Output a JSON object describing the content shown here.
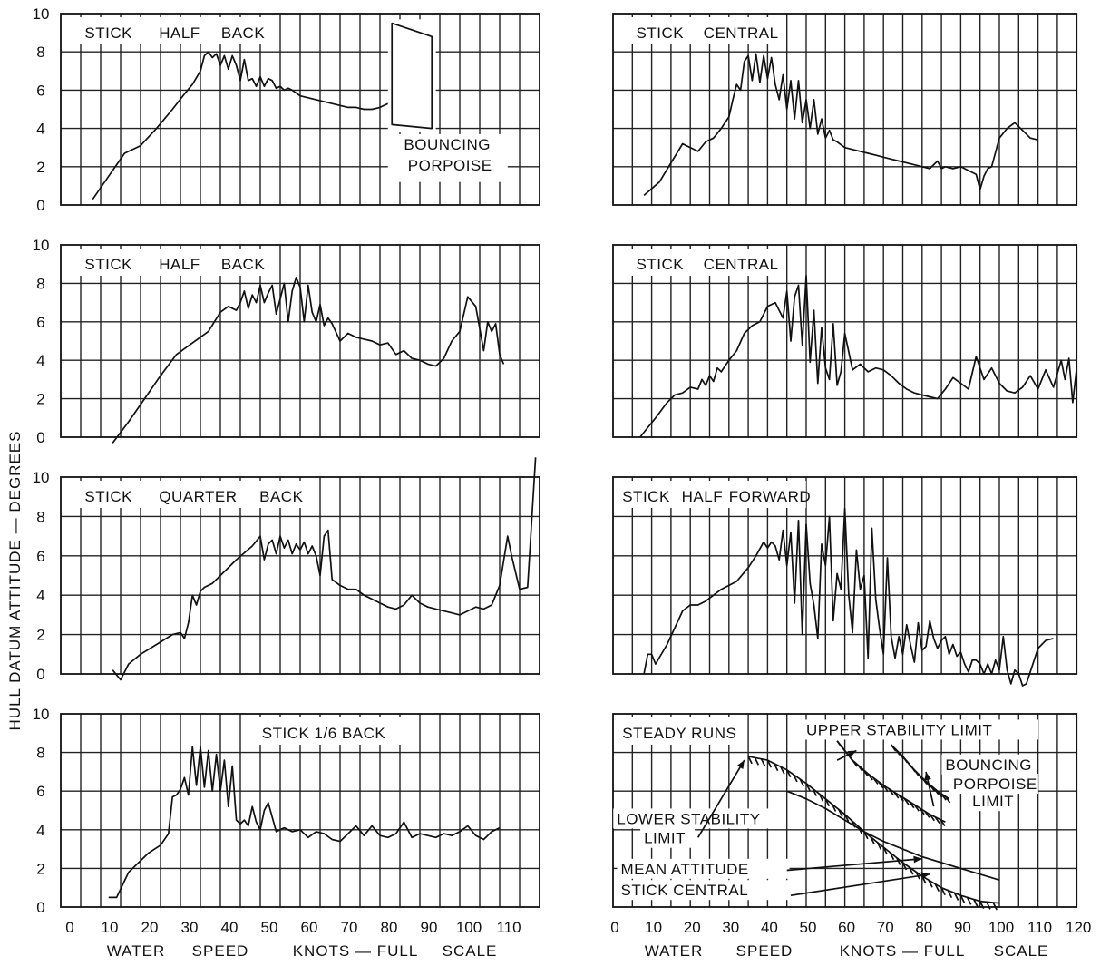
{
  "ylabel": "HULL DATUM ATTITUDE — DEGREES",
  "xlabel_left": [
    "WATER",
    "SPEED",
    "KNOTS — FULL",
    "SCALE"
  ],
  "xlabel_right": [
    "WATER",
    "SPEED",
    "KNOTS — FULL",
    "SCALE"
  ],
  "yticks": [
    0,
    2,
    4,
    6,
    8,
    10
  ],
  "xticks_left": [
    0,
    10,
    20,
    30,
    40,
    50,
    60,
    70,
    80,
    90,
    100,
    110
  ],
  "xticks_right": [
    0,
    10,
    20,
    30,
    40,
    50,
    60,
    70,
    80,
    90,
    100,
    110,
    120
  ],
  "chart_data": [
    {
      "type": "line",
      "title": "STICK HALF BACK",
      "annotations": [
        "BOUNCING",
        "PORPOISE"
      ],
      "xlim": [
        0,
        120
      ],
      "ylim": [
        0,
        10
      ],
      "grid": true,
      "series": [
        {
          "x": [
            8,
            12,
            16,
            20,
            24,
            28,
            31,
            33,
            35,
            36,
            37,
            38,
            39,
            40,
            41,
            42,
            43,
            44,
            45,
            46,
            47,
            48,
            49,
            50,
            51,
            52,
            53,
            54,
            55,
            56,
            57,
            58,
            60,
            62,
            64,
            66,
            68,
            70,
            72,
            74,
            76,
            78,
            80,
            82
          ],
          "values": [
            0.3,
            1.5,
            2.7,
            3.1,
            4.0,
            5.0,
            5.8,
            6.3,
            7.0,
            7.8,
            8.0,
            7.7,
            7.9,
            7.3,
            7.8,
            7.1,
            7.8,
            7.3,
            6.5,
            7.6,
            6.5,
            6.6,
            6.2,
            6.7,
            6.2,
            6.6,
            6.5,
            6.1,
            6.2,
            6.0,
            6.1,
            6.0,
            5.7,
            5.6,
            5.5,
            5.4,
            5.3,
            5.2,
            5.1,
            5.1,
            5.0,
            5.0,
            5.1,
            5.3
          ]
        }
      ],
      "porpoise_band": {
        "x": [
          83,
          83,
          93,
          93
        ],
        "y": [
          4.2,
          9.5,
          8.8,
          4.0
        ]
      }
    },
    {
      "type": "line",
      "title": "STICK CENTRAL",
      "xlim": [
        0,
        120
      ],
      "ylim": [
        0,
        10
      ],
      "grid": true,
      "series": [
        {
          "x": [
            8,
            12,
            15,
            18,
            20,
            22,
            24,
            26,
            28,
            30,
            31,
            32,
            33,
            34,
            35,
            36,
            37,
            38,
            39,
            40,
            41,
            42,
            43,
            44,
            45,
            46,
            47,
            48,
            49,
            50,
            51,
            52,
            53,
            54,
            55,
            56,
            57,
            58,
            60,
            62,
            64,
            66,
            68,
            70,
            72,
            74,
            76,
            78,
            80,
            82,
            84,
            85,
            86,
            88,
            90,
            92,
            94,
            95,
            96,
            97,
            98,
            100,
            102,
            104,
            106,
            108,
            110
          ],
          "values": [
            0.5,
            1.2,
            2.2,
            3.2,
            3.0,
            2.8,
            3.3,
            3.5,
            4.0,
            4.6,
            5.5,
            6.3,
            6.0,
            7.5,
            7.8,
            6.5,
            7.9,
            6.4,
            7.8,
            6.6,
            7.7,
            6.3,
            5.5,
            6.8,
            5.0,
            6.5,
            4.5,
            6.5,
            4.3,
            5.5,
            4.0,
            5.5,
            3.7,
            4.5,
            3.5,
            3.9,
            3.4,
            3.3,
            3.0,
            2.9,
            2.8,
            2.7,
            2.6,
            2.5,
            2.4,
            2.3,
            2.2,
            2.1,
            2.0,
            1.9,
            2.3,
            1.9,
            2.0,
            1.9,
            2.0,
            1.8,
            1.6,
            0.8,
            1.5,
            1.9,
            2.0,
            3.5,
            4.0,
            4.3,
            3.9,
            3.5,
            3.4
          ]
        }
      ]
    },
    {
      "type": "line",
      "title": "STICK HALF BACK",
      "xlim": [
        0,
        120
      ],
      "ylim": [
        0,
        10
      ],
      "grid": true,
      "series": [
        {
          "x": [
            13,
            17,
            21,
            25,
            29,
            33,
            37,
            40,
            42,
            44,
            45,
            46,
            47,
            48,
            49,
            50,
            51,
            52,
            53,
            54,
            55,
            56,
            57,
            58,
            59,
            60,
            61,
            62,
            63,
            64,
            65,
            66,
            67,
            68,
            70,
            72,
            74,
            76,
            78,
            80,
            82,
            84,
            86,
            88,
            90,
            92,
            94,
            96,
            98,
            100,
            102,
            104,
            106,
            107,
            108,
            109,
            110,
            111
          ],
          "values": [
            -0.3,
            0.8,
            2.0,
            3.2,
            4.3,
            4.9,
            5.5,
            6.5,
            6.8,
            6.6,
            7.0,
            7.6,
            6.7,
            7.4,
            7.0,
            7.9,
            7.0,
            7.5,
            7.9,
            6.4,
            7.2,
            8.0,
            6.0,
            7.6,
            8.3,
            7.8,
            6.0,
            7.9,
            6.5,
            6.0,
            6.9,
            5.8,
            6.2,
            5.9,
            5.0,
            5.4,
            5.2,
            5.1,
            5.0,
            4.8,
            4.9,
            4.3,
            4.5,
            4.1,
            4.0,
            3.8,
            3.7,
            4.1,
            5.0,
            5.5,
            7.3,
            6.8,
            4.5,
            6.0,
            5.5,
            5.9,
            4.3,
            3.8
          ]
        }
      ]
    },
    {
      "type": "line",
      "title": "STICK CENTRAL",
      "xlim": [
        0,
        120
      ],
      "ylim": [
        0,
        10
      ],
      "grid": true,
      "series": [
        {
          "x": [
            7,
            9,
            11,
            14,
            16,
            18,
            20,
            22,
            23,
            24,
            25,
            26,
            27,
            28,
            30,
            32,
            34,
            36,
            38,
            40,
            42,
            44,
            45,
            46,
            47,
            48,
            49,
            50,
            51,
            52,
            53,
            54,
            55,
            56,
            57,
            58,
            59,
            60,
            62,
            64,
            66,
            68,
            70,
            72,
            74,
            76,
            78,
            80,
            82,
            84,
            86,
            88,
            90,
            92,
            94,
            96,
            98,
            100,
            102,
            104,
            106,
            108,
            110,
            112,
            114,
            116,
            117,
            118,
            119,
            120
          ],
          "values": [
            0,
            0.5,
            1.0,
            1.8,
            2.2,
            2.3,
            2.6,
            2.5,
            3.0,
            2.7,
            3.2,
            2.9,
            3.6,
            3.4,
            4.0,
            4.5,
            5.4,
            5.8,
            6.0,
            6.8,
            7.0,
            6.2,
            7.6,
            5.0,
            7.3,
            7.9,
            4.8,
            8.4,
            3.9,
            6.6,
            2.8,
            5.7,
            3.6,
            3.0,
            5.9,
            2.7,
            3.4,
            5.4,
            3.5,
            3.8,
            3.4,
            3.6,
            3.5,
            3.2,
            2.8,
            2.5,
            2.3,
            2.2,
            2.1,
            2.0,
            2.5,
            3.1,
            2.8,
            2.5,
            4.2,
            3.0,
            3.6,
            2.8,
            2.4,
            2.3,
            2.6,
            3.2,
            2.5,
            3.5,
            2.6,
            4.0,
            3.0,
            4.1,
            1.8,
            3.6
          ]
        }
      ]
    },
    {
      "type": "line",
      "title": "STICK QUARTER BACK",
      "xlim": [
        0,
        120
      ],
      "ylim": [
        0,
        10
      ],
      "grid": true,
      "series": [
        {
          "x": [
            13,
            15,
            17,
            20,
            24,
            28,
            30,
            31,
            32,
            33,
            34,
            35,
            36,
            38,
            40,
            44,
            48,
            50,
            51,
            52,
            53,
            54,
            55,
            56,
            57,
            58,
            59,
            60,
            61,
            62,
            63,
            64,
            65,
            66,
            67,
            68,
            70,
            72,
            74,
            76,
            78,
            80,
            82,
            84,
            86,
            88,
            90,
            92,
            94,
            96,
            98,
            100,
            102,
            104,
            106,
            108,
            110,
            112,
            113,
            115,
            117,
            119
          ],
          "values": [
            0.2,
            -0.3,
            0.5,
            1.0,
            1.5,
            2.0,
            2.1,
            1.8,
            2.6,
            4.0,
            3.5,
            4.2,
            4.4,
            4.6,
            5.0,
            5.8,
            6.5,
            7.0,
            5.8,
            6.6,
            6.8,
            6.1,
            7.0,
            6.4,
            6.8,
            6.1,
            6.6,
            6.3,
            6.7,
            6.1,
            6.5,
            6.0,
            5.0,
            7.0,
            7.3,
            4.8,
            4.5,
            4.3,
            4.3,
            4.0,
            3.8,
            3.6,
            3.4,
            3.3,
            3.5,
            4.0,
            3.6,
            3.4,
            3.3,
            3.2,
            3.1,
            3.0,
            3.2,
            3.4,
            3.3,
            3.5,
            4.5,
            7.0,
            6.0,
            4.3,
            4.4,
            11.0
          ]
        }
      ]
    },
    {
      "type": "line",
      "title": "STICK HALF FORWARD",
      "xlim": [
        0,
        120
      ],
      "ylim": [
        0,
        10
      ],
      "grid": true,
      "series": [
        {
          "x": [
            8,
            9,
            10,
            11,
            14,
            18,
            20,
            22,
            24,
            28,
            30,
            32,
            35,
            37,
            39,
            40,
            41,
            42,
            43,
            44,
            45,
            46,
            47,
            48,
            49,
            50,
            51,
            52,
            53,
            54,
            55,
            56,
            57,
            58,
            59,
            60,
            61,
            62,
            63,
            64,
            65,
            66,
            67,
            68,
            69,
            70,
            71,
            72,
            73,
            74,
            75,
            76,
            77,
            78,
            79,
            80,
            81,
            82,
            83,
            84,
            85,
            86,
            87,
            88,
            89,
            90,
            91,
            92,
            93,
            94,
            95,
            96,
            97,
            98,
            99,
            100,
            101,
            102,
            103,
            104,
            105,
            106,
            107,
            108,
            110,
            112,
            114
          ],
          "values": [
            0,
            1.0,
            1.0,
            0.5,
            1.5,
            3.2,
            3.5,
            3.5,
            3.7,
            4.3,
            4.5,
            4.7,
            5.4,
            6.0,
            6.7,
            6.4,
            6.7,
            6.5,
            5.8,
            7.3,
            5.5,
            7.2,
            3.6,
            7.8,
            2.0,
            7.6,
            4.6,
            3.5,
            1.8,
            6.6,
            5.5,
            8.0,
            2.7,
            5.1,
            4.3,
            8.4,
            4.0,
            2.1,
            6.3,
            4.3,
            5.0,
            0.8,
            7.4,
            3.8,
            2.3,
            1.0,
            5.9,
            1.9,
            0.8,
            1.9,
            1.0,
            2.5,
            1.5,
            0.6,
            2.6,
            1.2,
            1.4,
            2.7,
            1.8,
            1.3,
            1.7,
            1.9,
            1.0,
            1.5,
            0.9,
            1.1,
            0.5,
            0.1,
            0.7,
            0.7,
            0.5,
            0.0,
            0.5,
            0.0,
            0.7,
            0.2,
            1.9,
            0.2,
            -0.5,
            0.2,
            0.0,
            -0.6,
            -0.5,
            0.1,
            1.3,
            1.7,
            1.8
          ]
        }
      ]
    },
    {
      "type": "line",
      "title": "STICK 1/6 BACK",
      "xlim": [
        0,
        120
      ],
      "ylim": [
        0,
        10
      ],
      "grid": true,
      "series": [
        {
          "x": [
            12,
            14,
            17,
            20,
            22,
            25,
            27,
            28,
            29,
            30,
            31,
            32,
            33,
            34,
            35,
            36,
            37,
            38,
            39,
            40,
            41,
            42,
            43,
            44,
            45,
            46,
            47,
            48,
            49,
            50,
            51,
            52,
            54,
            56,
            58,
            60,
            62,
            64,
            66,
            68,
            70,
            72,
            74,
            76,
            78,
            80,
            82,
            84,
            86,
            88,
            90,
            92,
            94,
            96,
            98,
            100,
            102,
            104,
            106,
            108,
            110
          ],
          "values": [
            0.5,
            0.5,
            1.8,
            2.4,
            2.8,
            3.2,
            3.8,
            5.7,
            5.8,
            6.1,
            6.7,
            5.8,
            8.3,
            6.3,
            8.3,
            6.2,
            8.1,
            6.0,
            7.9,
            6.0,
            7.6,
            5.2,
            7.3,
            4.5,
            4.3,
            4.5,
            4.2,
            5.2,
            4.4,
            4.0,
            5.0,
            5.4,
            3.9,
            4.1,
            3.9,
            4.0,
            3.6,
            3.9,
            3.8,
            3.5,
            3.4,
            3.8,
            4.2,
            3.7,
            4.2,
            3.7,
            3.6,
            3.8,
            4.4,
            3.6,
            3.8,
            3.7,
            3.6,
            3.8,
            3.7,
            3.9,
            4.2,
            3.7,
            3.5,
            3.9,
            4.1
          ]
        }
      ]
    },
    {
      "type": "line",
      "title": "STEADY RUNS",
      "xlim": [
        0,
        120
      ],
      "ylim": [
        0,
        10
      ],
      "grid": true,
      "annotations": [
        "UPPER STABILITY LIMIT",
        "BOUNCING",
        "PORPOISE",
        "LIMIT",
        "LOWER STABILITY",
        "LIMIT",
        "MEAN ATTITUDE",
        "STICK CENTRAL"
      ],
      "series": [
        {
          "x": [
            35,
            40,
            45,
            50,
            55,
            60,
            65,
            70,
            75,
            80,
            85,
            90,
            95,
            100
          ],
          "values": [
            7.8,
            7.6,
            7.1,
            6.4,
            5.6,
            4.8,
            3.9,
            3.1,
            2.3,
            1.6,
            1.0,
            0.6,
            0.3,
            0.2
          ]
        },
        {
          "x": [
            45,
            50,
            55,
            60,
            65,
            70,
            75,
            80,
            85,
            90,
            95,
            100
          ],
          "values": [
            6.0,
            5.6,
            5.1,
            4.5,
            3.9,
            3.4,
            3.0,
            2.6,
            2.3,
            2.0,
            1.7,
            1.4
          ]
        },
        {
          "x": [
            58,
            62,
            66,
            70,
            74,
            78,
            82,
            86
          ],
          "values": [
            8.6,
            7.6,
            6.9,
            6.3,
            5.8,
            5.3,
            4.8,
            4.4
          ]
        },
        {
          "x": [
            72,
            75,
            78,
            81,
            84,
            87
          ],
          "values": [
            8.4,
            7.8,
            7.1,
            6.5,
            6.0,
            5.6
          ]
        }
      ]
    }
  ]
}
